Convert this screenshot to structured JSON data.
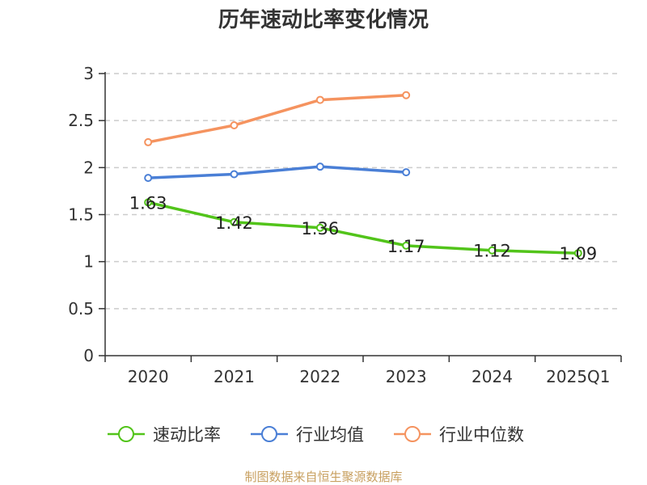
{
  "chart_data": {
    "type": "line",
    "title": "历年速动比率变化情况",
    "categories": [
      "2020",
      "2021",
      "2022",
      "2023",
      "2024",
      "2025Q1"
    ],
    "ylim": [
      0,
      3
    ],
    "yticks": [
      0,
      0.5,
      1,
      1.5,
      2,
      2.5,
      3
    ],
    "ytick_labels": [
      "0",
      "0.5",
      "1",
      "1.5",
      "2",
      "2.5",
      "3"
    ],
    "grid": true,
    "legend_position": "bottom",
    "series": [
      {
        "name": "速动比率",
        "color": "#52c41a",
        "values": [
          1.63,
          1.42,
          1.36,
          1.17,
          1.12,
          1.09
        ],
        "labels": [
          "1.63",
          "1.42",
          "1.36",
          "1.17",
          "1.12",
          "1.09"
        ]
      },
      {
        "name": "行业均值",
        "color": "#4a7fd6",
        "values": [
          1.89,
          1.93,
          2.01,
          1.95,
          null,
          null
        ]
      },
      {
        "name": "行业中位数",
        "color": "#f5935f",
        "values": [
          2.27,
          2.45,
          2.72,
          2.77,
          null,
          null
        ]
      }
    ],
    "source": "制图数据来自恒生聚源数据库"
  }
}
